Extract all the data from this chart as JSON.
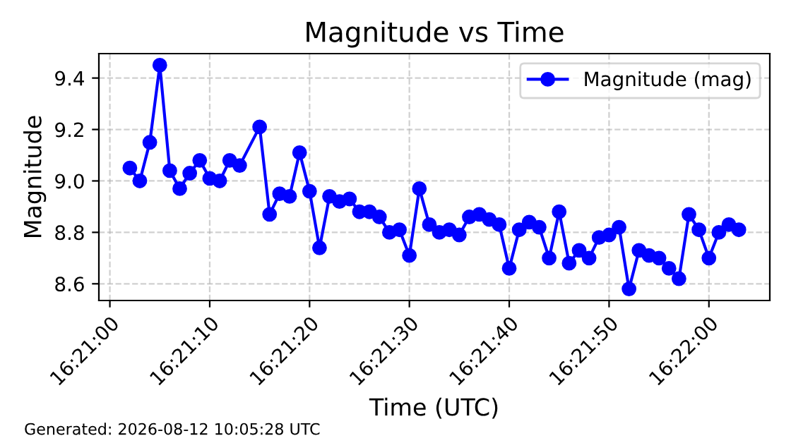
{
  "chart_data": {
    "type": "line",
    "title": "Magnitude vs Time",
    "xlabel": "Time (UTC)",
    "ylabel": "Magnitude",
    "x": [
      16.350556,
      16.350833,
      16.351111,
      16.351389,
      16.351667,
      16.351944,
      16.352222,
      16.3525,
      16.352778,
      16.353056,
      16.353333,
      16.353611,
      16.354167,
      16.354444,
      16.354722,
      16.355,
      16.355278,
      16.355556,
      16.355833,
      16.356111,
      16.356389,
      16.356667,
      16.356944,
      16.357222,
      16.3575,
      16.357778,
      16.358056,
      16.358333,
      16.358611,
      16.358889,
      16.359167,
      16.359444,
      16.359722,
      16.36,
      16.360278,
      16.360556,
      16.360833,
      16.361111,
      16.361389,
      16.361667,
      16.361944,
      16.362222,
      16.3625,
      16.362778,
      16.363056,
      16.363333,
      16.363611,
      16.363889,
      16.364167,
      16.364444,
      16.364722,
      16.365,
      16.365278,
      16.365556,
      16.365833,
      16.366111,
      16.366389,
      16.366667,
      16.366944,
      16.367222,
      16.3675
    ],
    "series": [
      {
        "name": "Magnitude (mag)",
        "color": "#0000ff",
        "values": [
          9.05,
          9.0,
          9.15,
          9.45,
          9.04,
          8.97,
          9.03,
          9.08,
          9.01,
          9.0,
          9.08,
          9.06,
          9.21,
          8.87,
          8.95,
          8.94,
          9.11,
          8.96,
          8.74,
          8.94,
          8.92,
          8.93,
          8.88,
          8.88,
          8.86,
          8.8,
          8.81,
          8.71,
          8.97,
          8.83,
          8.8,
          8.81,
          8.79,
          8.86,
          8.87,
          8.85,
          8.83,
          8.66,
          8.81,
          8.84,
          8.82,
          8.7,
          8.88,
          8.68,
          8.73,
          8.7,
          8.78,
          8.79,
          8.82,
          8.58,
          8.73,
          8.71,
          8.7,
          8.66,
          8.62,
          8.87,
          8.81,
          8.7,
          8.8,
          8.83,
          8.81
        ]
      }
    ],
    "xlim": [
      16.349694,
      16.368361
    ],
    "xticks": [
      {
        "value": 16.35,
        "label": "16:21:00"
      },
      {
        "value": 16.352778,
        "label": "16:21:10"
      },
      {
        "value": 16.355556,
        "label": "16:21:20"
      },
      {
        "value": 16.358333,
        "label": "16:21:30"
      },
      {
        "value": 16.361111,
        "label": "16:21:40"
      },
      {
        "value": 16.363889,
        "label": "16:21:50"
      },
      {
        "value": 16.366667,
        "label": "16:22:00"
      }
    ],
    "ylim": [
      8.535,
      9.495
    ],
    "yticks": [
      8.6,
      8.8,
      {
        "value": 9,
        "label": "9.0"
      },
      9.2,
      9.4
    ],
    "grid": true,
    "legend": "top right",
    "marker": "circle",
    "line_style": "solid",
    "annotations": [
      "Generated: 2026-08-12 10:05:28 UTC"
    ]
  }
}
